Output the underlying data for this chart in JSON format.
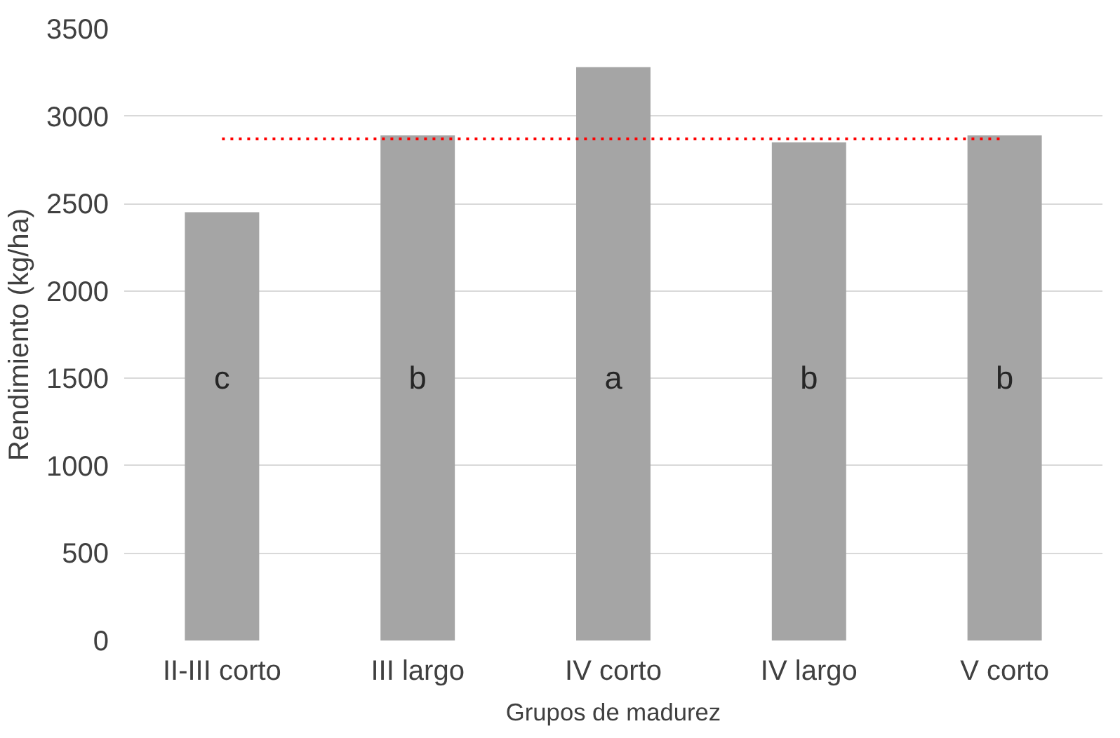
{
  "chart_data": {
    "type": "bar",
    "xlabel": "Grupos de madurez",
    "ylabel": "Rendimiento (kg/ha)",
    "categories": [
      "II-III corto",
      "III largo",
      "IV corto",
      "IV largo",
      "V corto"
    ],
    "values": [
      2450,
      2890,
      3280,
      2850,
      2890
    ],
    "color": "#a5a5a5",
    "ylim": [
      0,
      3500
    ],
    "yticks": [
      0,
      500,
      1000,
      1500,
      2000,
      2500,
      3000,
      3500
    ],
    "grid": "y",
    "ref_lines": [
      {
        "axis": "y",
        "value": 2870,
        "color": "#ff0000",
        "line_style": "dotted"
      }
    ],
    "annotations": [
      "c",
      "b",
      "a",
      "b",
      "b"
    ]
  }
}
